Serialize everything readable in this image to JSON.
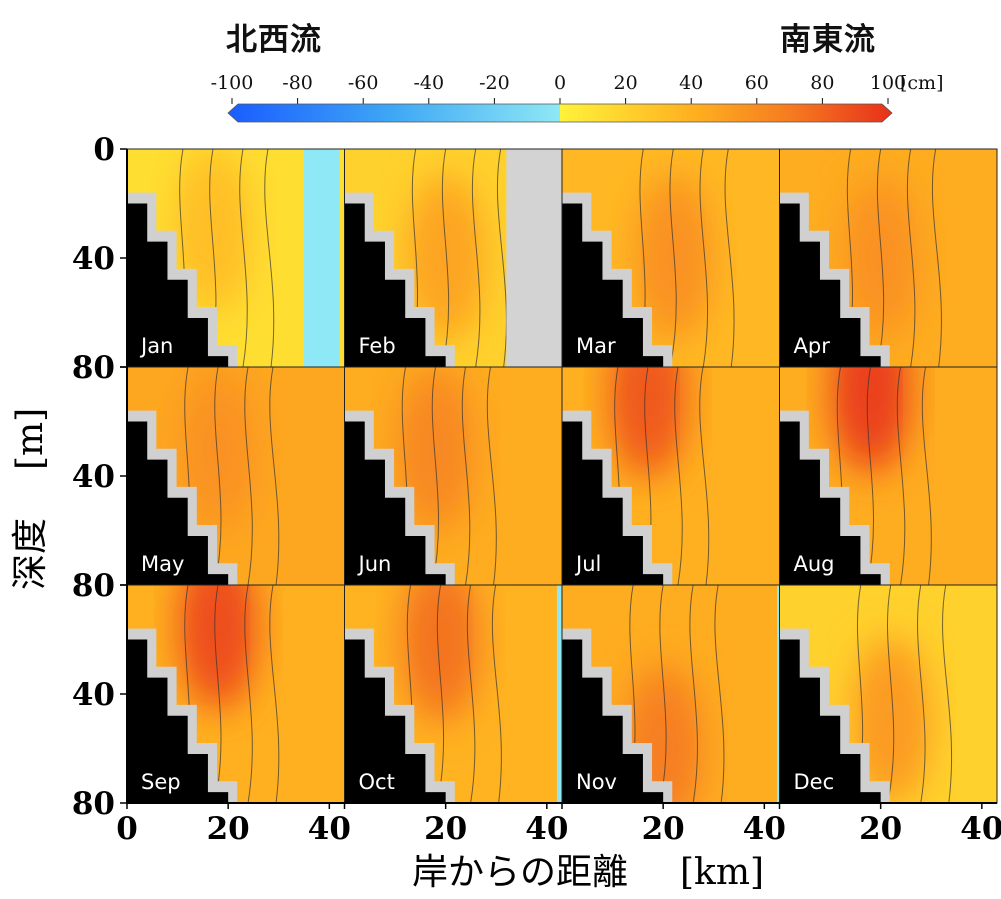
{
  "header": {
    "left_label": "北西流",
    "right_label": "南東流"
  },
  "colorbar": {
    "ticks": [
      -100,
      -80,
      -60,
      -40,
      -20,
      0,
      20,
      40,
      60,
      80,
      100
    ],
    "tick_labels": [
      "-100",
      "-80",
      "-60",
      "-40",
      "-20",
      "0",
      "20",
      "40",
      "60",
      "80",
      "100"
    ],
    "unit": "[cm]",
    "range": [
      -100,
      100
    ],
    "negative_colors": [
      "#1a5cff",
      "#3fa8f5",
      "#8fe8f5"
    ],
    "positive_colors": [
      "#fff23a",
      "#ffb020",
      "#f57a20",
      "#e8301a"
    ]
  },
  "chart_data": {
    "type": "heatmap",
    "title": "",
    "xlabel": "岸からの距離",
    "xlabel_unit": "[km]",
    "ylabel": "深度",
    "ylabel_unit": "[m]",
    "x_range_km": [
      0,
      43
    ],
    "y_range_m": [
      0,
      80
    ],
    "x_ticks": [
      "0",
      "20",
      "40"
    ],
    "y_ticks_top_row": [
      "0",
      "40",
      "80"
    ],
    "y_ticks_middle_row": [
      "80",
      "40",
      "80"
    ],
    "y_ticks_bottom_row": [
      "80",
      "40",
      "80"
    ],
    "value_unit": "cm",
    "value_range": [
      -100,
      100
    ],
    "grid": false,
    "bathymetry_steps": [
      {
        "x_km": 0,
        "depth_m": 20
      },
      {
        "x_km": 4,
        "depth_m": 34
      },
      {
        "x_km": 8,
        "depth_m": 48
      },
      {
        "x_km": 12,
        "depth_m": 62
      },
      {
        "x_km": 16,
        "depth_m": 76
      }
    ],
    "panels": [
      {
        "month": "Jan",
        "core_x_km": 17,
        "core_depth_m": 30,
        "core_value": 30,
        "background_value": 12,
        "northwest_band_km": [
          35,
          42
        ],
        "no_data_band_km": null
      },
      {
        "month": "Feb",
        "core_x_km": 20,
        "core_depth_m": 40,
        "core_value": 45,
        "background_value": 20,
        "northwest_band_km": null,
        "no_data_band_km": [
          32,
          43
        ]
      },
      {
        "month": "Mar",
        "core_x_km": 22,
        "core_depth_m": 40,
        "core_value": 55,
        "background_value": 35,
        "northwest_band_km": null,
        "no_data_band_km": null
      },
      {
        "month": "Apr",
        "core_x_km": 20,
        "core_depth_m": 40,
        "core_value": 55,
        "background_value": 42,
        "northwest_band_km": null,
        "no_data_band_km": null
      },
      {
        "month": "May",
        "core_x_km": 18,
        "core_depth_m": 30,
        "core_value": 55,
        "background_value": 45,
        "northwest_band_km": null,
        "no_data_band_km": null
      },
      {
        "month": "Jun",
        "core_x_km": 18,
        "core_depth_m": 30,
        "core_value": 60,
        "background_value": 42,
        "northwest_band_km": null,
        "no_data_band_km": null
      },
      {
        "month": "Jul",
        "core_x_km": 17,
        "core_depth_m": 10,
        "core_value": 80,
        "background_value": 40,
        "northwest_band_km": null,
        "no_data_band_km": null
      },
      {
        "month": "Aug",
        "core_x_km": 18,
        "core_depth_m": 8,
        "core_value": 90,
        "background_value": 42,
        "northwest_band_km": null,
        "no_data_band_km": null
      },
      {
        "month": "Sep",
        "core_x_km": 18,
        "core_depth_m": 15,
        "core_value": 85,
        "background_value": 40,
        "northwest_band_km": null,
        "no_data_band_km": null
      },
      {
        "month": "Oct",
        "core_x_km": 19,
        "core_depth_m": 20,
        "core_value": 70,
        "background_value": 38,
        "northwest_band_km": [
          42,
          43
        ],
        "no_data_band_km": null
      },
      {
        "month": "Nov",
        "core_x_km": 20,
        "core_depth_m": 60,
        "core_value": 65,
        "background_value": 42,
        "northwest_band_km": [
          42.5,
          43
        ],
        "no_data_band_km": null
      },
      {
        "month": "Dec",
        "core_x_km": 22,
        "core_depth_m": 50,
        "core_value": 50,
        "background_value": 20,
        "northwest_band_km": null,
        "no_data_band_km": null
      }
    ]
  }
}
